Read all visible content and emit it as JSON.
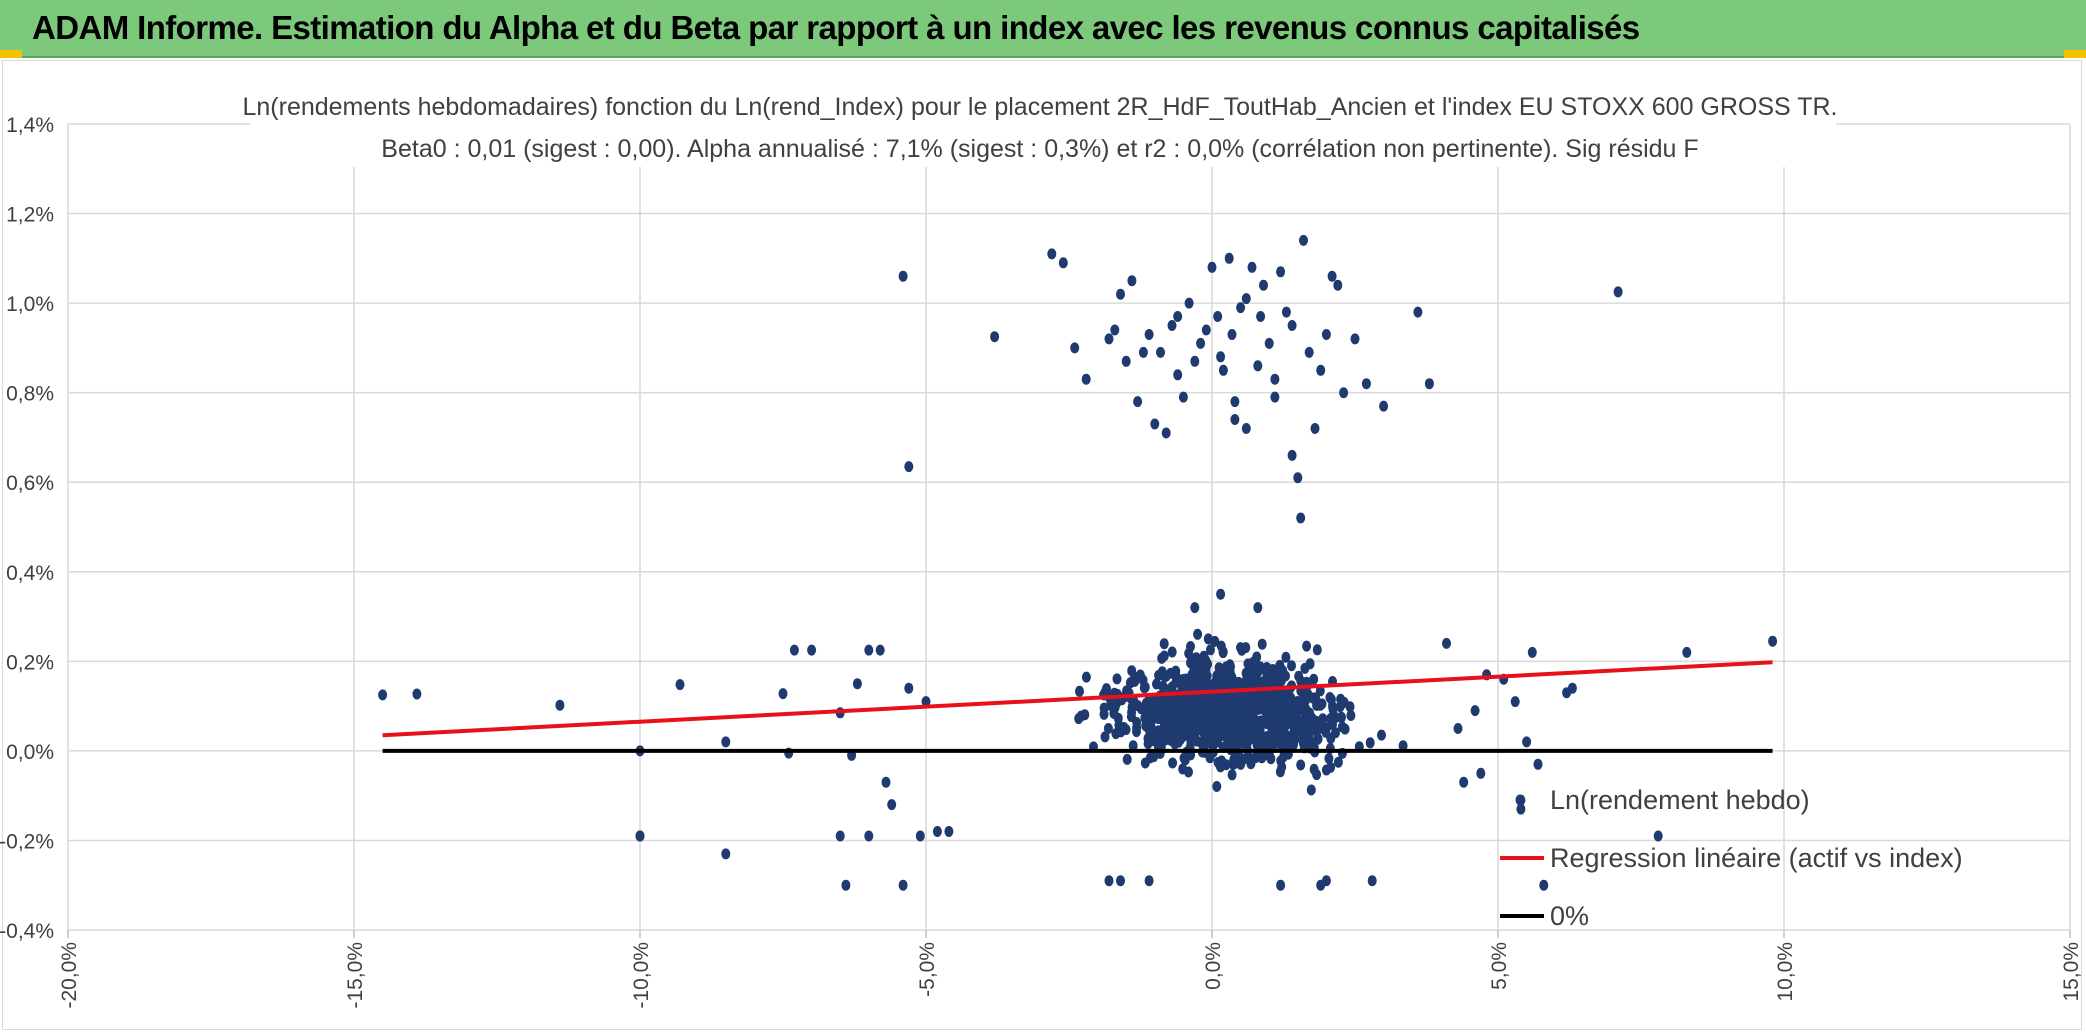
{
  "header": {
    "title": "ADAM Informe. Estimation du Alpha et du Beta par rapport à un index avec les revenus connus capitalisés"
  },
  "colors": {
    "header_bg": "#7cc97b",
    "accent_corner": "#f2c200",
    "points": "#1f3a6e",
    "regression": "#e8101a",
    "zero_line": "#000000",
    "grid": "#d9d9d9"
  },
  "chart_data": {
    "type": "scatter",
    "title_line1": "Ln(rendements hebdomadaires) fonction du Ln(rend_Index) pour le placement 2R_HdF_ToutHab_Ancien et l'index EU STOXX 600 GROSS TR.",
    "title_line2": "Beta0 : 0,01 (sigest : 0,00). Alpha annualisé : 7,1% (sigest : 0,3%) et r2 : 0,0% (corrélation non pertinente). Sig résidu F",
    "xlim": [
      -0.2,
      0.15
    ],
    "ylim": [
      -0.004,
      0.014
    ],
    "grid": true,
    "x_ticks": [
      -0.2,
      -0.15,
      -0.1,
      -0.05,
      0.0,
      0.05,
      0.1,
      0.15
    ],
    "x_tick_labels": [
      "-20,0%",
      "-15,0%",
      "-10,0%",
      "-5,0%",
      "0,0%",
      "5,0%",
      "10,0%",
      "15,0%"
    ],
    "y_ticks": [
      -0.004,
      -0.002,
      0.0,
      0.002,
      0.004,
      0.006,
      0.008,
      0.01,
      0.012,
      0.014
    ],
    "y_tick_labels": [
      "-0,4%",
      "-0,2%",
      "0,0%",
      "0,2%",
      "0,4%",
      "0,6%",
      "0,8%",
      "1,0%",
      "1,2%",
      "1,4%"
    ],
    "legend_position": "bottom-right",
    "series": [
      {
        "name": "Ln(rendement hebdo)",
        "kind": "points",
        "generated_cluster": {
          "count": 1000,
          "x_center": 0.003,
          "x_spread": 0.022,
          "y_center": 0.0009,
          "y_spread": 0.0011,
          "y_min": -0.0022,
          "y_max": 0.0033
        },
        "points": [
          [
            -0.145,
            0.00125
          ],
          [
            -0.139,
            0.00127
          ],
          [
            -0.114,
            0.00102
          ],
          [
            -0.1,
            0.0
          ],
          [
            -0.1,
            -0.0019
          ],
          [
            -0.093,
            0.00148
          ],
          [
            -0.085,
            -0.0023
          ],
          [
            -0.085,
            0.0002
          ],
          [
            -0.075,
            0.00128
          ],
          [
            -0.074,
            -5e-05
          ],
          [
            -0.073,
            0.00225
          ],
          [
            -0.07,
            0.00225
          ],
          [
            -0.065,
            0.00085
          ],
          [
            -0.064,
            -0.003
          ],
          [
            -0.063,
            -0.0001
          ],
          [
            -0.062,
            0.0015
          ],
          [
            -0.06,
            0.00225
          ],
          [
            -0.06,
            -0.0019
          ],
          [
            -0.058,
            0.00225
          ],
          [
            -0.057,
            -0.0007
          ],
          [
            -0.056,
            -0.0012
          ],
          [
            -0.054,
            -0.003
          ],
          [
            -0.053,
            0.0014
          ],
          [
            -0.051,
            -0.0019
          ],
          [
            -0.05,
            0.0011
          ],
          [
            -0.048,
            -0.0018
          ],
          [
            -0.046,
            -0.0018
          ],
          [
            -0.1,
            -0.0019
          ],
          [
            -0.065,
            -0.0019
          ],
          [
            -0.054,
            0.0106
          ],
          [
            -0.053,
            0.00635
          ],
          [
            -0.038,
            0.00925
          ],
          [
            -0.028,
            0.0111
          ],
          [
            -0.026,
            0.0109
          ],
          [
            -0.024,
            0.009
          ],
          [
            -0.022,
            0.0083
          ],
          [
            -0.017,
            0.0094
          ],
          [
            -0.016,
            0.0102
          ],
          [
            -0.015,
            0.0087
          ],
          [
            -0.014,
            0.0105
          ],
          [
            -0.013,
            0.0078
          ],
          [
            -0.011,
            0.0093
          ],
          [
            -0.01,
            0.0073
          ],
          [
            -0.009,
            0.0089
          ],
          [
            -0.008,
            0.0071
          ],
          [
            -0.007,
            0.0095
          ],
          [
            -0.006,
            0.0084
          ],
          [
            -0.005,
            0.0079
          ],
          [
            -0.004,
            0.01
          ],
          [
            -0.003,
            0.0087
          ],
          [
            -0.002,
            0.0091
          ],
          [
            0.0,
            0.0108
          ],
          [
            0.001,
            0.0097
          ],
          [
            0.002,
            0.0085
          ],
          [
            0.003,
            0.011
          ],
          [
            0.004,
            0.0078
          ],
          [
            0.005,
            0.0099
          ],
          [
            0.006,
            0.0072
          ],
          [
            0.007,
            0.0108
          ],
          [
            0.008,
            0.0086
          ],
          [
            0.009,
            0.0104
          ],
          [
            0.01,
            0.0091
          ],
          [
            0.011,
            0.0079
          ],
          [
            0.012,
            0.0107
          ],
          [
            0.013,
            0.0098
          ],
          [
            0.014,
            0.0066
          ],
          [
            0.015,
            0.0061
          ],
          [
            0.0155,
            0.0052
          ],
          [
            0.016,
            0.0114
          ],
          [
            0.017,
            0.0089
          ],
          [
            0.018,
            0.0072
          ],
          [
            0.019,
            0.0085
          ],
          [
            0.02,
            0.0093
          ],
          [
            0.021,
            0.0106
          ],
          [
            0.022,
            0.0104
          ],
          [
            0.023,
            0.008
          ],
          [
            0.025,
            0.0092
          ],
          [
            0.027,
            0.0082
          ],
          [
            0.03,
            0.0077
          ],
          [
            0.036,
            0.0098
          ],
          [
            0.038,
            0.0082
          ],
          [
            0.071,
            0.01025
          ],
          [
            -0.001,
            0.0094
          ],
          [
            0.0015,
            0.0088
          ],
          [
            0.0035,
            0.0093
          ],
          [
            -0.012,
            0.0089
          ],
          [
            0.0085,
            0.0097
          ],
          [
            -0.018,
            0.0092
          ],
          [
            0.011,
            0.0083
          ],
          [
            0.006,
            0.0101
          ],
          [
            -0.006,
            0.0097
          ],
          [
            0.004,
            0.0074
          ],
          [
            0.014,
            0.0095
          ],
          [
            0.041,
            0.0024
          ],
          [
            0.048,
            0.0017
          ],
          [
            0.051,
            0.0016
          ],
          [
            0.053,
            0.0011
          ],
          [
            0.054,
            -0.0011
          ],
          [
            0.055,
            0.0002
          ],
          [
            0.056,
            0.0022
          ],
          [
            0.057,
            -0.0003
          ],
          [
            0.062,
            0.0013
          ],
          [
            0.063,
            0.0014
          ],
          [
            0.078,
            -0.0019
          ],
          [
            0.083,
            0.0022
          ],
          [
            0.098,
            0.00245
          ],
          [
            0.047,
            -0.0005
          ],
          [
            0.058,
            -0.003
          ],
          [
            0.054,
            -0.0013
          ],
          [
            0.046,
            0.0009
          ],
          [
            0.044,
            -0.0007
          ],
          [
            0.043,
            0.0005
          ],
          [
            -0.018,
            -0.0029
          ],
          [
            -0.016,
            -0.0029
          ],
          [
            -0.011,
            -0.0029
          ],
          [
            0.012,
            -0.003
          ],
          [
            0.019,
            -0.003
          ],
          [
            0.02,
            -0.0029
          ],
          [
            0.028,
            -0.0029
          ],
          [
            0.0015,
            0.0035
          ],
          [
            -0.003,
            0.0032
          ],
          [
            0.008,
            0.0032
          ]
        ]
      },
      {
        "name": "Regression linéaire (actif vs index)",
        "kind": "line",
        "x": [
          -0.145,
          0.098
        ],
        "y": [
          0.00035,
          0.00198
        ]
      },
      {
        "name": "0%",
        "kind": "line",
        "x": [
          -0.145,
          0.098
        ],
        "y": [
          0.0,
          0.0
        ]
      }
    ]
  }
}
